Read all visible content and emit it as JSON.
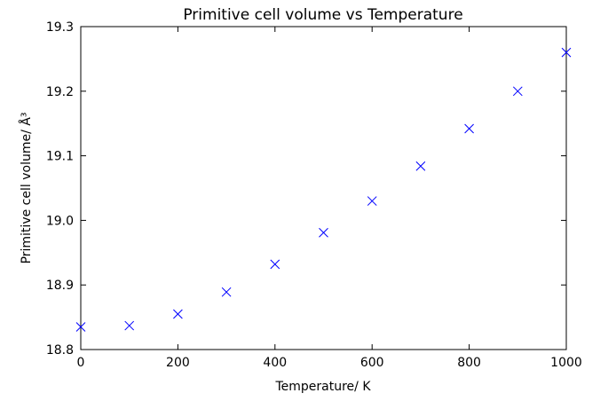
{
  "chart_data": {
    "type": "scatter",
    "title": "Primitive cell volume vs Temperature",
    "xlabel": "Temperature/ K",
    "ylabel": "Primitive cell volume/ Å³",
    "xlim": [
      0,
      1000
    ],
    "ylim": [
      18.8,
      19.3
    ],
    "x_ticks": [
      "0",
      "200",
      "400",
      "600",
      "800",
      "1000"
    ],
    "y_ticks": [
      "18.8",
      "18.9",
      "19.0",
      "19.1",
      "19.2",
      "19.3"
    ],
    "grid": false,
    "marker": "x",
    "marker_color": "#0000ff",
    "series": [
      {
        "x": [
          0,
          100,
          200,
          300,
          400,
          500,
          600,
          700,
          800,
          900,
          1000
        ],
        "y": [
          18.835,
          18.837,
          18.855,
          18.889,
          18.932,
          18.981,
          19.03,
          19.084,
          19.142,
          19.2,
          19.26
        ]
      }
    ]
  }
}
